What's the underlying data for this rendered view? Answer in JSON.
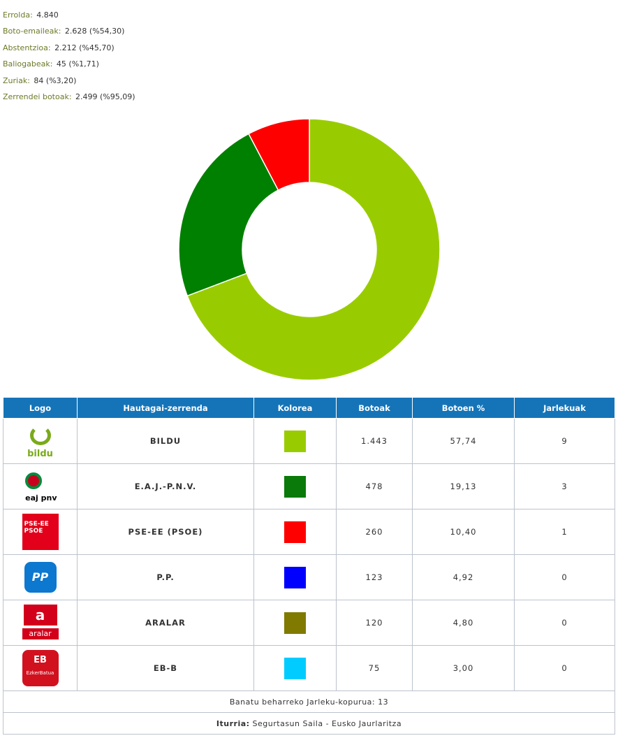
{
  "summary": [
    {
      "label": "Errolda:",
      "value": "4.840"
    },
    {
      "label": "Boto-emaileak:",
      "value": "2.628 (%54,30)"
    },
    {
      "label": "Abstentzioa:",
      "value": "2.212 (%45,70)"
    },
    {
      "label": "Baliogabeak:",
      "value": "45 (%1,71)"
    },
    {
      "label": "Zuriak:",
      "value": "84 (%3,20)"
    },
    {
      "label": "Zerrendei botoak:",
      "value": "2.499 (%95,09)"
    }
  ],
  "chart_data": {
    "type": "pie",
    "variant": "donut",
    "categories": [
      "BILDU",
      "E.A.J.-P.N.V.",
      "PSE-EE (PSOE)"
    ],
    "values": [
      9,
      3,
      1
    ],
    "colors": [
      "#99cc00",
      "#008000",
      "#ff0000"
    ]
  },
  "table": {
    "headers": [
      "Logo",
      "Hautagai-zerrenda",
      "Kolorea",
      "Botoak",
      "Botoen %",
      "Jarlekuak"
    ],
    "rows": [
      {
        "logo": "bildu-logo",
        "logo_text": "bildu",
        "party": "BILDU",
        "color": "#99cc00",
        "votes": "1.443",
        "pct": "57,74",
        "seats": "9"
      },
      {
        "logo": "eaj-pnv-logo",
        "logo_text": "eaj pnv",
        "party": "E.A.J.-P.N.V.",
        "color": "#0a7a0a",
        "votes": "478",
        "pct": "19,13",
        "seats": "3"
      },
      {
        "logo": "pse-ee-logo",
        "logo_text": "PSE-EE PSOE",
        "party": "PSE-EE (PSOE)",
        "color": "#ff0000",
        "votes": "260",
        "pct": "10,40",
        "seats": "1"
      },
      {
        "logo": "pp-logo",
        "logo_text": "PP",
        "party": "P.P.",
        "color": "#0000ff",
        "votes": "123",
        "pct": "4,92",
        "seats": "0"
      },
      {
        "logo": "aralar-logo",
        "logo_text": "aralar",
        "party": "ARALAR",
        "color": "#807a00",
        "votes": "120",
        "pct": "4,80",
        "seats": "0"
      },
      {
        "logo": "eb-b-logo",
        "logo_text": "EzkerBatua",
        "party": "EB-B",
        "color": "#00ccff",
        "votes": "75",
        "pct": "3,00",
        "seats": "0"
      }
    ],
    "footer_seats": "Banatu beharreko Jarleku-kopurua: 13",
    "footer_source_label": "Iturria:",
    "footer_source": "Segurtasun Saila - Eusko Jaurlaritza"
  }
}
